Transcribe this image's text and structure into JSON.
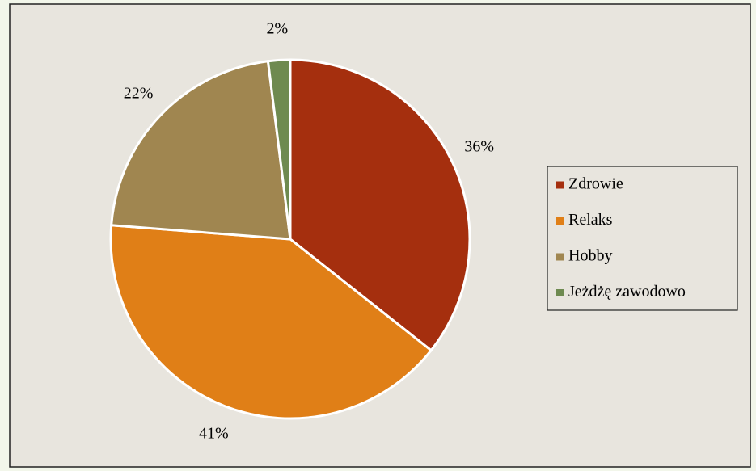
{
  "chart_data": {
    "type": "pie",
    "categories": [
      "Zdrowie",
      "Relaks",
      "Hobby",
      "Jeżdżę zawodowo"
    ],
    "values": [
      36,
      41,
      22,
      2
    ],
    "value_labels": [
      "36%",
      "41%",
      "22%",
      "2%"
    ],
    "colors": [
      "#a52f0e",
      "#e07f17",
      "#a08650",
      "#6e8a50"
    ],
    "legend": "right"
  }
}
